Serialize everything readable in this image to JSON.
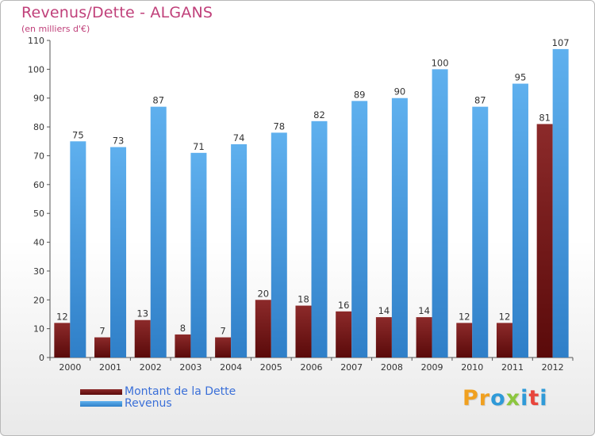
{
  "title": "Revenus/Dette - ALGANS",
  "subtitle": "(en milliers d'€)",
  "logo": {
    "letters": [
      "P",
      "r",
      "o",
      "x",
      "i",
      "t",
      "i"
    ],
    "colors": [
      "#f0a020",
      "#f0a020",
      "#2f9ad8",
      "#8cc63f",
      "#2f9ad8",
      "#e8453c",
      "#2f9ad8"
    ]
  },
  "colors": {
    "dette_top": "#8c2a2a",
    "dette_bottom": "#5a0a0a",
    "revenus_top": "#5fb0ee",
    "revenus_bottom": "#2f7fc8",
    "title": "#c0407a",
    "legend_text": "#3a6fd8"
  },
  "chart_data": {
    "type": "bar",
    "categories": [
      "2000",
      "2001",
      "2002",
      "2003",
      "2004",
      "2005",
      "2006",
      "2007",
      "2008",
      "2009",
      "2010",
      "2011",
      "2012"
    ],
    "series": [
      {
        "name": "Montant de la Dette",
        "values": [
          12,
          7,
          13,
          8,
          7,
          20,
          18,
          16,
          14,
          14,
          12,
          12,
          81
        ]
      },
      {
        "name": "Revenus",
        "values": [
          75,
          73,
          87,
          71,
          74,
          78,
          82,
          89,
          90,
          100,
          87,
          95,
          107
        ]
      }
    ],
    "title": "Revenus/Dette - ALGANS",
    "subtitle": "(en milliers d'€)",
    "ylim": [
      0,
      110
    ],
    "yticks": [
      0,
      10,
      20,
      30,
      40,
      50,
      60,
      70,
      80,
      90,
      100,
      110
    ],
    "grid": "none",
    "legend": "bottom-left"
  }
}
